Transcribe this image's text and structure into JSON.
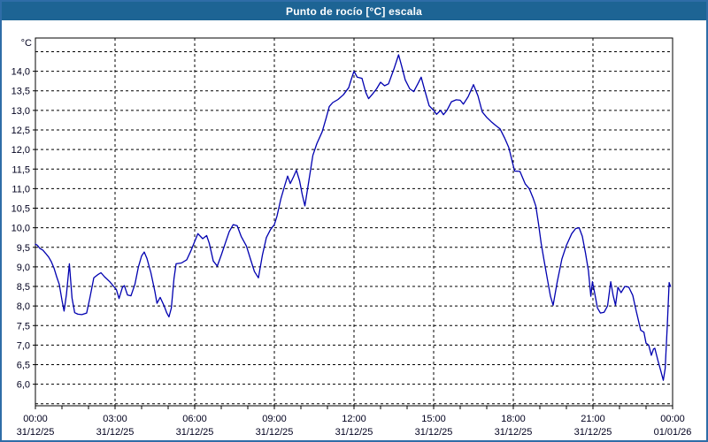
{
  "window": {
    "title": "Punto de rocío [°C] escala"
  },
  "colors": {
    "titlebar_bg": "#1d6494",
    "window_border": "#2f6da7",
    "plot_bg": "#ffffff",
    "plot_frame": "#000000",
    "gridline": "#000000",
    "tick_label": "#00001e",
    "line": "#0000b0"
  },
  "chart_data": {
    "type": "line",
    "title": "Punto de rocío [°C] escala",
    "y_unit_label": "°C",
    "xlabel": "",
    "ylabel": "°C",
    "grid": "dashed",
    "legend": "none",
    "x_range_hours": [
      0,
      24
    ],
    "y_axis_top_value": 14.85,
    "y_axis_bottom_value": 5.45,
    "x_tick_interval_hours": 3,
    "x_minor_tick_interval_hours": 1,
    "x_ticks": [
      {
        "hour": 0,
        "time": "00:00",
        "date": "31/12/25"
      },
      {
        "hour": 3,
        "time": "03:00",
        "date": "31/12/25"
      },
      {
        "hour": 6,
        "time": "06:00",
        "date": "31/12/25"
      },
      {
        "hour": 9,
        "time": "09:00",
        "date": "31/12/25"
      },
      {
        "hour": 12,
        "time": "12:00",
        "date": "31/12/25"
      },
      {
        "hour": 15,
        "time": "15:00",
        "date": "31/12/25"
      },
      {
        "hour": 18,
        "time": "18:00",
        "date": "31/12/25"
      },
      {
        "hour": 21,
        "time": "21:00",
        "date": "31/12/25"
      },
      {
        "hour": 24,
        "time": "00:00",
        "date": "01/01/26"
      }
    ],
    "y_ticks": [
      {
        "value": 14.0,
        "label": "14,0"
      },
      {
        "value": 13.5,
        "label": "13,5"
      },
      {
        "value": 13.0,
        "label": "13,0"
      },
      {
        "value": 12.5,
        "label": "12,5"
      },
      {
        "value": 12.0,
        "label": "12,0"
      },
      {
        "value": 11.5,
        "label": "11,5"
      },
      {
        "value": 11.0,
        "label": "11,0"
      },
      {
        "value": 10.5,
        "label": "10,5"
      },
      {
        "value": 10.0,
        "label": "10,0"
      },
      {
        "value": 9.5,
        "label": "9,5"
      },
      {
        "value": 9.0,
        "label": "9,0"
      },
      {
        "value": 8.5,
        "label": "8,5"
      },
      {
        "value": 8.0,
        "label": "8,0"
      },
      {
        "value": 7.5,
        "label": "7,5"
      },
      {
        "value": 7.0,
        "label": "7,0"
      },
      {
        "value": 6.5,
        "label": "6,5"
      },
      {
        "value": 6.0,
        "label": "6,0"
      }
    ],
    "y_gridlines_unlabeled": [
      14.5,
      5.5
    ],
    "series": [
      {
        "name": "Punto de rocío",
        "color": "#0000b0",
        "points": [
          [
            0.0,
            9.58
          ],
          [
            0.08,
            9.55
          ],
          [
            0.17,
            9.47
          ],
          [
            0.28,
            9.43
          ],
          [
            0.38,
            9.35
          ],
          [
            0.5,
            9.25
          ],
          [
            0.6,
            9.13
          ],
          [
            0.7,
            8.97
          ],
          [
            0.8,
            8.75
          ],
          [
            0.9,
            8.55
          ],
          [
            1.0,
            8.15
          ],
          [
            1.08,
            7.87
          ],
          [
            1.17,
            8.3
          ],
          [
            1.28,
            9.08
          ],
          [
            1.38,
            8.2
          ],
          [
            1.48,
            7.83
          ],
          [
            1.6,
            7.79
          ],
          [
            1.75,
            7.78
          ],
          [
            1.93,
            7.82
          ],
          [
            2.05,
            8.2
          ],
          [
            2.2,
            8.72
          ],
          [
            2.35,
            8.8
          ],
          [
            2.47,
            8.85
          ],
          [
            2.6,
            8.75
          ],
          [
            2.8,
            8.62
          ],
          [
            2.95,
            8.5
          ],
          [
            3.05,
            8.42
          ],
          [
            3.15,
            8.19
          ],
          [
            3.28,
            8.48
          ],
          [
            3.35,
            8.52
          ],
          [
            3.47,
            8.28
          ],
          [
            3.6,
            8.26
          ],
          [
            3.75,
            8.56
          ],
          [
            3.88,
            9.0
          ],
          [
            4.0,
            9.28
          ],
          [
            4.1,
            9.38
          ],
          [
            4.2,
            9.22
          ],
          [
            4.35,
            8.85
          ],
          [
            4.5,
            8.37
          ],
          [
            4.58,
            8.07
          ],
          [
            4.7,
            8.22
          ],
          [
            4.85,
            8.0
          ],
          [
            4.95,
            7.82
          ],
          [
            5.03,
            7.72
          ],
          [
            5.12,
            7.95
          ],
          [
            5.22,
            8.7
          ],
          [
            5.3,
            9.08
          ],
          [
            5.5,
            9.1
          ],
          [
            5.7,
            9.18
          ],
          [
            5.85,
            9.4
          ],
          [
            6.0,
            9.65
          ],
          [
            6.12,
            9.85
          ],
          [
            6.3,
            9.72
          ],
          [
            6.45,
            9.8
          ],
          [
            6.55,
            9.6
          ],
          [
            6.7,
            9.15
          ],
          [
            6.85,
            9.02
          ],
          [
            7.0,
            9.3
          ],
          [
            7.15,
            9.6
          ],
          [
            7.3,
            9.9
          ],
          [
            7.45,
            10.08
          ],
          [
            7.6,
            10.05
          ],
          [
            7.75,
            9.78
          ],
          [
            7.95,
            9.53
          ],
          [
            8.1,
            9.2
          ],
          [
            8.25,
            8.88
          ],
          [
            8.4,
            8.72
          ],
          [
            8.55,
            9.3
          ],
          [
            8.7,
            9.75
          ],
          [
            8.85,
            9.95
          ],
          [
            9.0,
            10.08
          ],
          [
            9.1,
            10.3
          ],
          [
            9.25,
            10.75
          ],
          [
            9.4,
            11.1
          ],
          [
            9.5,
            11.32
          ],
          [
            9.6,
            11.13
          ],
          [
            9.72,
            11.3
          ],
          [
            9.83,
            11.47
          ],
          [
            9.95,
            11.2
          ],
          [
            10.05,
            10.85
          ],
          [
            10.15,
            10.56
          ],
          [
            10.3,
            11.2
          ],
          [
            10.45,
            11.85
          ],
          [
            10.6,
            12.15
          ],
          [
            10.8,
            12.45
          ],
          [
            10.95,
            12.8
          ],
          [
            11.07,
            13.1
          ],
          [
            11.2,
            13.2
          ],
          [
            11.4,
            13.28
          ],
          [
            11.6,
            13.4
          ],
          [
            11.8,
            13.58
          ],
          [
            11.9,
            13.8
          ],
          [
            12.0,
            14.0
          ],
          [
            12.12,
            13.85
          ],
          [
            12.3,
            13.82
          ],
          [
            12.45,
            13.45
          ],
          [
            12.55,
            13.3
          ],
          [
            12.7,
            13.42
          ],
          [
            12.85,
            13.55
          ],
          [
            13.0,
            13.72
          ],
          [
            13.15,
            13.63
          ],
          [
            13.3,
            13.68
          ],
          [
            13.5,
            14.05
          ],
          [
            13.68,
            14.42
          ],
          [
            13.8,
            14.12
          ],
          [
            13.93,
            13.78
          ],
          [
            14.1,
            13.55
          ],
          [
            14.25,
            13.48
          ],
          [
            14.42,
            13.7
          ],
          [
            14.53,
            13.85
          ],
          [
            14.67,
            13.5
          ],
          [
            14.83,
            13.12
          ],
          [
            15.0,
            13.0
          ],
          [
            15.11,
            12.9
          ],
          [
            15.26,
            13.0
          ],
          [
            15.37,
            12.89
          ],
          [
            15.5,
            13.0
          ],
          [
            15.67,
            13.22
          ],
          [
            15.85,
            13.27
          ],
          [
            16.0,
            13.26
          ],
          [
            16.12,
            13.16
          ],
          [
            16.3,
            13.35
          ],
          [
            16.5,
            13.66
          ],
          [
            16.67,
            13.37
          ],
          [
            16.83,
            12.96
          ],
          [
            17.0,
            12.82
          ],
          [
            17.17,
            12.71
          ],
          [
            17.33,
            12.62
          ],
          [
            17.5,
            12.53
          ],
          [
            17.67,
            12.3
          ],
          [
            17.83,
            12.05
          ],
          [
            17.95,
            11.72
          ],
          [
            18.05,
            11.45
          ],
          [
            18.25,
            11.44
          ],
          [
            18.45,
            11.12
          ],
          [
            18.6,
            11.0
          ],
          [
            18.75,
            10.75
          ],
          [
            18.85,
            10.55
          ],
          [
            18.95,
            10.1
          ],
          [
            19.05,
            9.6
          ],
          [
            19.15,
            9.2
          ],
          [
            19.28,
            8.7
          ],
          [
            19.4,
            8.25
          ],
          [
            19.5,
            8.02
          ],
          [
            19.65,
            8.6
          ],
          [
            19.83,
            9.2
          ],
          [
            20.0,
            9.55
          ],
          [
            20.2,
            9.85
          ],
          [
            20.35,
            9.98
          ],
          [
            20.48,
            10.0
          ],
          [
            20.6,
            9.78
          ],
          [
            20.72,
            9.35
          ],
          [
            20.83,
            8.9
          ],
          [
            20.92,
            8.25
          ],
          [
            20.98,
            8.62
          ],
          [
            21.06,
            8.35
          ],
          [
            21.17,
            7.95
          ],
          [
            21.28,
            7.82
          ],
          [
            21.42,
            7.84
          ],
          [
            21.55,
            8.0
          ],
          [
            21.67,
            8.62
          ],
          [
            21.76,
            8.27
          ],
          [
            21.85,
            8.02
          ],
          [
            21.94,
            8.48
          ],
          [
            22.06,
            8.34
          ],
          [
            22.2,
            8.5
          ],
          [
            22.35,
            8.48
          ],
          [
            22.5,
            8.27
          ],
          [
            22.62,
            7.9
          ],
          [
            22.73,
            7.58
          ],
          [
            22.8,
            7.38
          ],
          [
            22.92,
            7.33
          ],
          [
            23.0,
            7.05
          ],
          [
            23.1,
            7.0
          ],
          [
            23.2,
            6.74
          ],
          [
            23.28,
            6.9
          ],
          [
            23.33,
            6.92
          ],
          [
            23.45,
            6.6
          ],
          [
            23.56,
            6.33
          ],
          [
            23.65,
            6.1
          ],
          [
            23.72,
            6.4
          ],
          [
            23.8,
            7.5
          ],
          [
            23.87,
            8.6
          ],
          [
            23.92,
            8.5
          ]
        ]
      }
    ]
  }
}
